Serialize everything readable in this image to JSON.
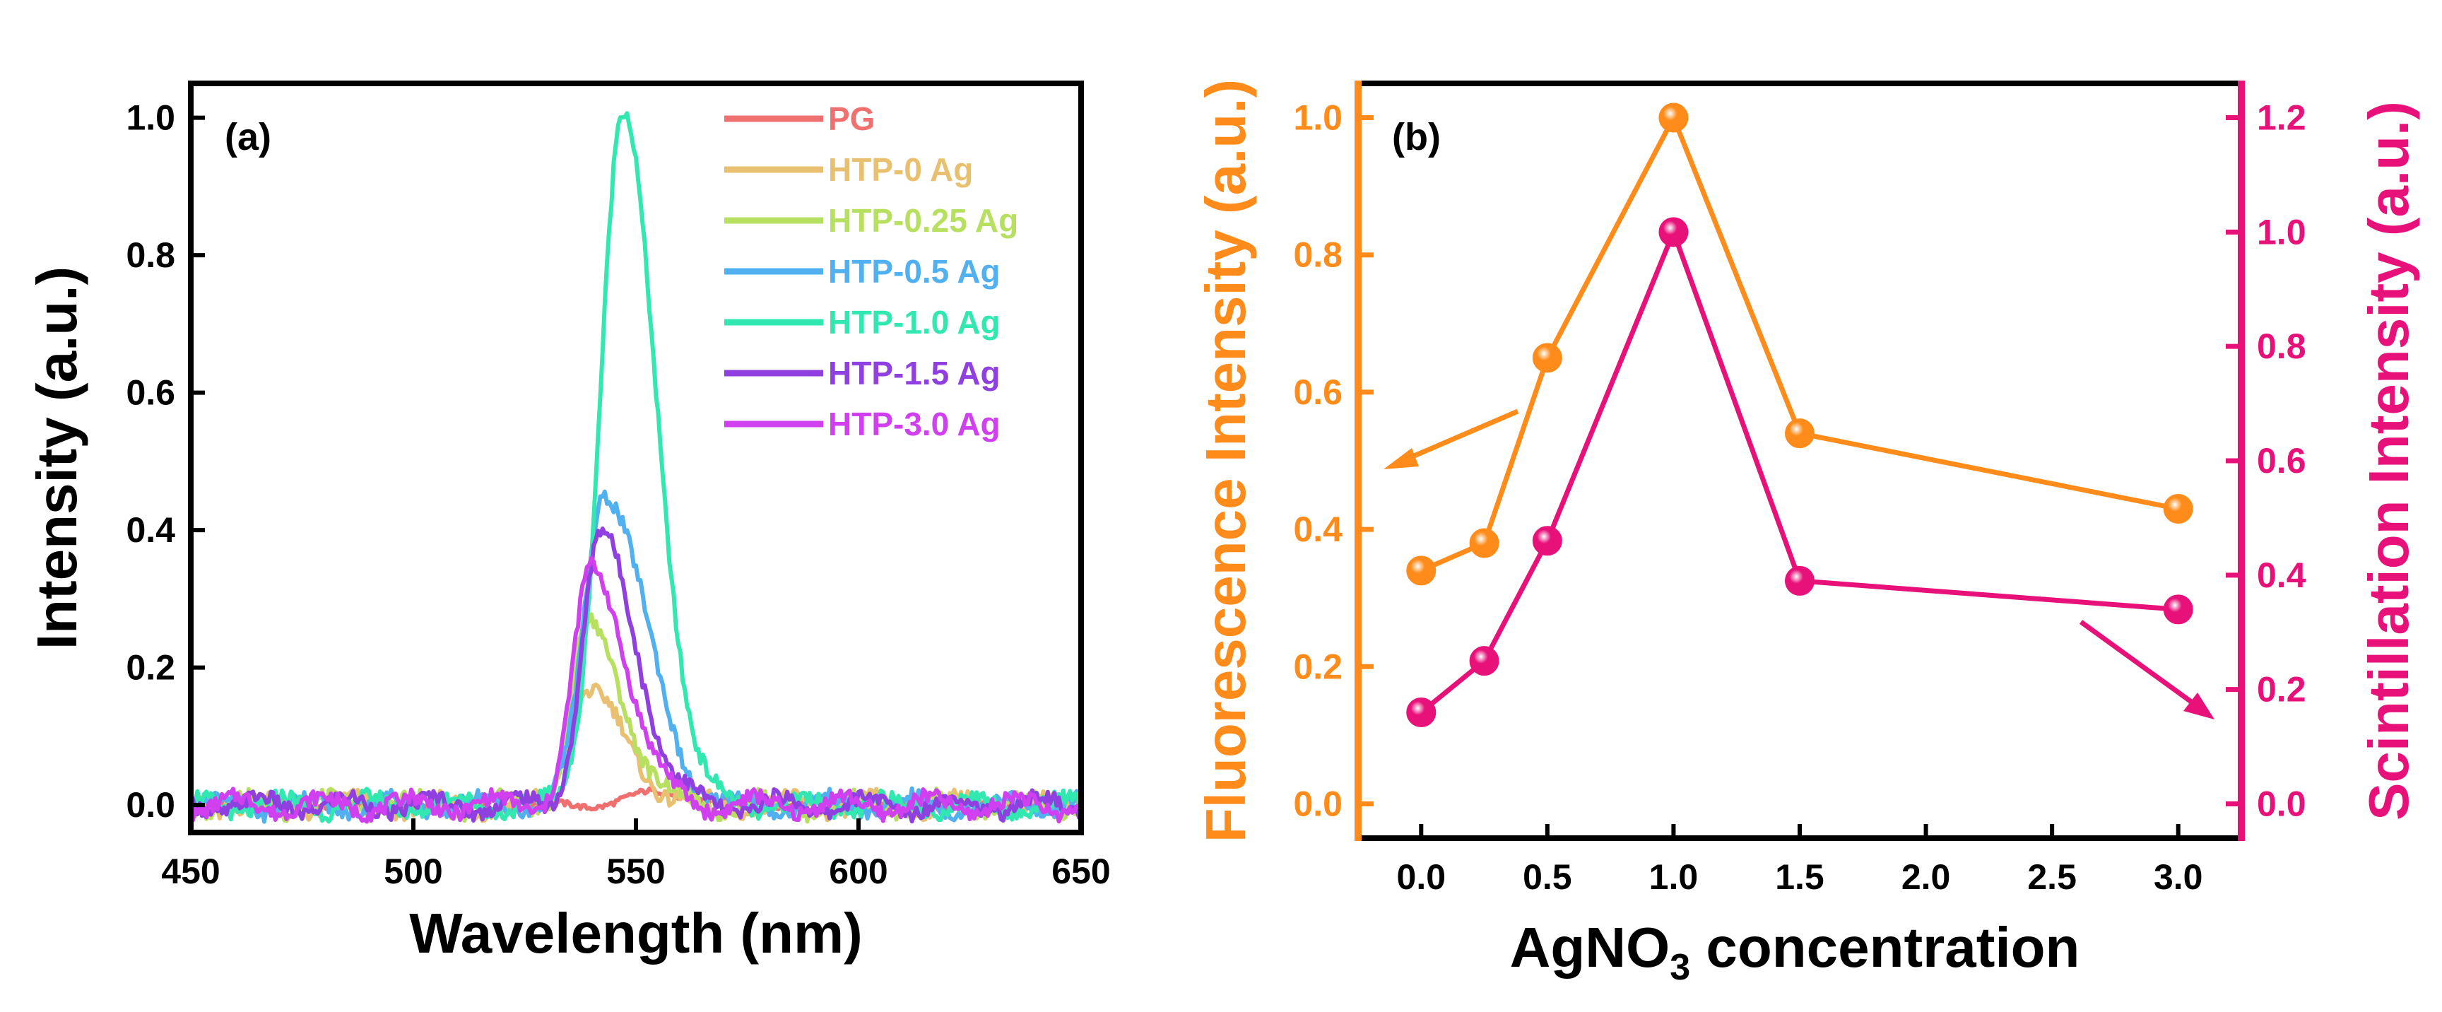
{
  "chart_data": [
    {
      "panel_label": "(a)",
      "type": "line",
      "xlabel": "Wavelength (nm)",
      "ylabel": "Intensity (a.u.)",
      "xlim": [
        450,
        650
      ],
      "ylim": [
        -0.04,
        1.05
      ],
      "xticks": [
        450,
        500,
        550,
        600,
        650
      ],
      "yticks": [
        0.0,
        0.2,
        0.4,
        0.6,
        0.8,
        1.0
      ],
      "xtick_labels": [
        "450",
        "500",
        "550",
        "600",
        "650"
      ],
      "ytick_labels": [
        "0.0",
        "0.2",
        "0.4",
        "0.6",
        "0.8",
        "1.0"
      ],
      "legend_position": "top-right",
      "series": [
        {
          "name": "PG",
          "color": "#F07070",
          "peak_x": 556,
          "peak_y": 0.02,
          "sigma_left": 6,
          "sigma_right": 6
        },
        {
          "name": "HTP-0 Ag",
          "color": "#E8C070",
          "peak_x": 538,
          "peak_y": 0.17,
          "sigma_left": 3.5,
          "sigma_right": 9
        },
        {
          "name": "HTP-0.25 Ag",
          "color": "#B8E060",
          "peak_x": 539,
          "peak_y": 0.26,
          "sigma_left": 3.5,
          "sigma_right": 8
        },
        {
          "name": "HTP-0.5 Ag",
          "color": "#50B0F0",
          "peak_x": 543,
          "peak_y": 0.46,
          "sigma_left": 4.5,
          "sigma_right": 9
        },
        {
          "name": "HTP-1.0 Ag",
          "color": "#30E8B0",
          "peak_x": 547,
          "peak_y": 1.0,
          "sigma_left": 5,
          "sigma_right": 7.5
        },
        {
          "name": "HTP-1.5 Ag",
          "color": "#9040E0",
          "peak_x": 542,
          "peak_y": 0.39,
          "sigma_left": 4,
          "sigma_right": 8
        },
        {
          "name": "HTP-3.0 Ag",
          "color": "#D040F0",
          "peak_x": 540,
          "peak_y": 0.34,
          "sigma_left": 4,
          "sigma_right": 8
        }
      ]
    },
    {
      "panel_label": "(b)",
      "type": "scatter-line",
      "xlabel_main": "AgNO",
      "xlabel_sub": "3",
      "xlabel_rest": " concentration",
      "ylabel_left": "Fluorescence Intensity (a.u.)",
      "ylabel_right": "Scintillation Intensity (a.u.)",
      "xlim": [
        -0.25,
        3.25
      ],
      "ylim_left": [
        -0.05,
        1.05
      ],
      "ylim_right": [
        -0.06,
        1.26
      ],
      "xticks": [
        0.0,
        0.5,
        1.0,
        1.5,
        2.0,
        2.5,
        3.0
      ],
      "xtick_labels": [
        "0.0",
        "0.5",
        "1.0",
        "1.5",
        "2.0",
        "2.5",
        "3.0"
      ],
      "yticks_left": [
        0.0,
        0.2,
        0.4,
        0.6,
        0.8,
        1.0
      ],
      "ytick_labels_left": [
        "0.0",
        "0.2",
        "0.4",
        "0.6",
        "0.8",
        "1.0"
      ],
      "yticks_right": [
        0.0,
        0.2,
        0.4,
        0.6,
        0.8,
        1.0,
        1.2
      ],
      "ytick_labels_right": [
        "0.0",
        "0.2",
        "0.4",
        "0.6",
        "0.8",
        "1.0",
        "1.2"
      ],
      "series": [
        {
          "name": "Fluorescence",
          "axis": "left",
          "color": "#FF8C1A",
          "x": [
            0.0,
            0.25,
            0.5,
            1.0,
            1.5,
            3.0
          ],
          "y": [
            0.34,
            0.38,
            0.65,
            1.0,
            0.54,
            0.43
          ]
        },
        {
          "name": "Scintillation",
          "axis": "right",
          "color": "#E8117A",
          "x": [
            0.0,
            0.25,
            0.5,
            1.0,
            1.5,
            3.0
          ],
          "y": [
            0.16,
            0.25,
            0.46,
            1.0,
            0.39,
            0.34
          ]
        }
      ]
    }
  ]
}
